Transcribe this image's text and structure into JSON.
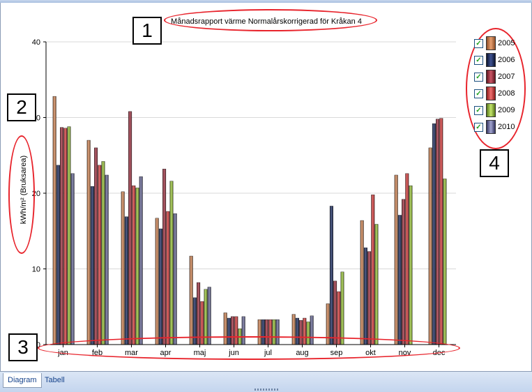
{
  "chart_data": {
    "type": "bar",
    "title": "Månadsrapport värme Normalårskorrigerad för Kråkan 4",
    "ylabel": "kWh/m² (Bruksarea)",
    "xlabel": "",
    "ylim": [
      0,
      40
    ],
    "yticks": [
      0,
      10,
      20,
      30,
      40
    ],
    "grid": true,
    "legend_position": "right",
    "categories": [
      "jan",
      "feb",
      "mar",
      "apr",
      "maj",
      "jun",
      "jul",
      "aug",
      "sep",
      "okt",
      "nov",
      "dec"
    ],
    "series": [
      {
        "name": "2005",
        "color": "#d98b58",
        "values": [
          32.8,
          27.0,
          20.2,
          16.7,
          11.7,
          4.2,
          3.3,
          4.0,
          5.4,
          16.4,
          22.4,
          26.0
        ]
      },
      {
        "name": "2006",
        "color": "#1f2f66",
        "values": [
          23.7,
          20.9,
          16.9,
          15.3,
          6.2,
          3.5,
          3.3,
          3.5,
          18.3,
          12.8,
          17.1,
          29.2
        ]
      },
      {
        "name": "2007",
        "color": "#a83545",
        "values": [
          28.7,
          26.0,
          30.8,
          23.2,
          8.2,
          3.7,
          3.3,
          3.2,
          8.4,
          12.3,
          19.2,
          29.8
        ]
      },
      {
        "name": "2008",
        "color": "#e04040",
        "values": [
          28.6,
          23.7,
          21.0,
          17.6,
          5.7,
          3.7,
          3.3,
          3.5,
          7.0,
          19.8,
          22.6,
          29.9
        ]
      },
      {
        "name": "2009",
        "color": "#9cc83a",
        "values": [
          28.8,
          24.2,
          20.7,
          21.6,
          7.3,
          2.1,
          3.3,
          3.0,
          9.6,
          15.9,
          21.0,
          21.9
        ]
      },
      {
        "name": "2010",
        "color": "#6d6e9e",
        "values": [
          22.6,
          22.4,
          22.2,
          17.3,
          7.6,
          3.7,
          3.3,
          3.8,
          null,
          null,
          null,
          null
        ]
      }
    ]
  },
  "callouts": {
    "c1": "1",
    "c2": "2",
    "c3": "3",
    "c4": "4"
  },
  "legend": {
    "checked_glyph": "✓"
  },
  "tabs": {
    "diagram": "Diagram",
    "tabell": "Tabell"
  },
  "colors": {
    "gridline": "#d9d9d9",
    "axis": "#000000",
    "callout": "#e8242c"
  }
}
